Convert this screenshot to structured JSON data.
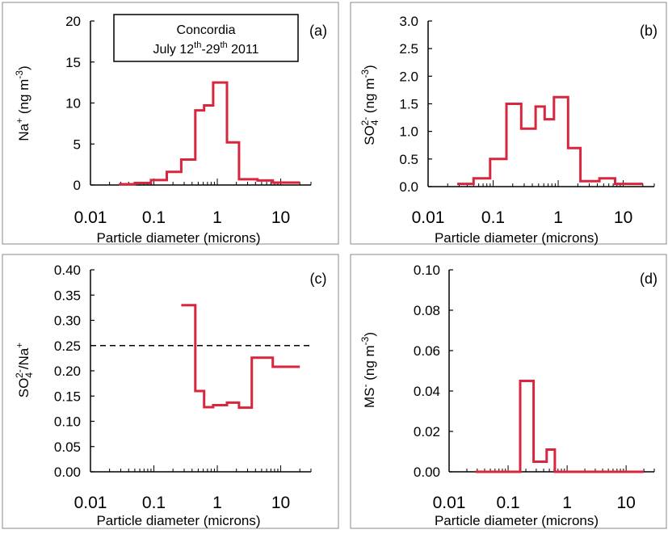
{
  "figure": {
    "legend_box": {
      "line1": "Concordia",
      "line2_prefix": "July 12",
      "sup1": "th",
      "line2_mid": "-29",
      "sup2": "th",
      "line2_suffix": " 2011"
    }
  },
  "chart_data": [
    {
      "panel": "(a)",
      "type": "line",
      "step": true,
      "x_scale": "log",
      "xlabel": "Particle diameter (microns)",
      "ylabel_parts": {
        "base": "Na",
        "sup": "+",
        "unit": " (ng m",
        "unit_sup": "-3",
        "close": ")"
      },
      "xlim": [
        0.01,
        30
      ],
      "ylim": [
        0,
        20
      ],
      "x_ticks": [
        0.01,
        0.1,
        1,
        10
      ],
      "x_tick_labels": [
        "0.01",
        "0.1",
        "1",
        "10"
      ],
      "y_ticks": [
        0,
        5,
        10,
        15,
        20
      ],
      "y_tick_labels": [
        "0",
        "5",
        "10",
        "15",
        "20"
      ],
      "edges": [
        0.028,
        0.05,
        0.09,
        0.16,
        0.27,
        0.45,
        0.62,
        0.86,
        1.42,
        2.2,
        4.3,
        7.5,
        20
      ],
      "values": [
        0.1,
        0.25,
        0.6,
        1.6,
        3.1,
        9.1,
        9.7,
        12.5,
        5.2,
        0.7,
        0.55,
        0.3
      ],
      "color": "#d7263d",
      "dashed_y": null
    },
    {
      "panel": "(b)",
      "type": "line",
      "step": true,
      "x_scale": "log",
      "xlabel": "Particle diameter (microns)",
      "ylabel_parts": {
        "base": "SO",
        "sub": "4",
        "sup": "2-",
        "unit": " (ng m",
        "unit_sup": "-3",
        "close": ")"
      },
      "xlim": [
        0.01,
        30
      ],
      "ylim": [
        0,
        3.0
      ],
      "x_ticks": [
        0.01,
        0.1,
        1,
        10
      ],
      "x_tick_labels": [
        "0.01",
        "0.1",
        "1",
        "10"
      ],
      "y_ticks": [
        0,
        0.5,
        1.0,
        1.5,
        2.0,
        2.5,
        3.0
      ],
      "y_tick_labels": [
        "0.0",
        "0.5",
        "1.0",
        "1.5",
        "2.0",
        "2.5",
        "3.0"
      ],
      "edges": [
        0.028,
        0.05,
        0.09,
        0.16,
        0.27,
        0.45,
        0.62,
        0.86,
        1.42,
        2.2,
        4.3,
        7.5,
        20
      ],
      "values": [
        0.05,
        0.15,
        0.5,
        1.5,
        1.05,
        1.45,
        1.22,
        1.62,
        0.7,
        0.1,
        0.15,
        0.05
      ],
      "color": "#d7263d",
      "dashed_y": null
    },
    {
      "panel": "(c)",
      "type": "line",
      "step": true,
      "x_scale": "log",
      "xlabel": "Particle diameter (microns)",
      "ylabel_parts": {
        "base": "SO",
        "sub": "4",
        "sup": "2-",
        "mid": "/Na",
        "sup2": "+"
      },
      "xlim": [
        0.01,
        30
      ],
      "ylim": [
        0,
        0.4
      ],
      "x_ticks": [
        0.01,
        0.1,
        1,
        10
      ],
      "x_tick_labels": [
        "0.01",
        "0.1",
        "1",
        "10"
      ],
      "y_ticks": [
        0,
        0.05,
        0.1,
        0.15,
        0.2,
        0.25,
        0.3,
        0.35,
        0.4
      ],
      "y_tick_labels": [
        "0.00",
        "0.05",
        "0.10",
        "0.15",
        "0.20",
        "0.25",
        "0.30",
        "0.35",
        "0.40"
      ],
      "edges": [
        0.27,
        0.45,
        0.62,
        0.86,
        1.42,
        2.2,
        3.5,
        7.5,
        20
      ],
      "values": [
        0.33,
        0.16,
        0.128,
        0.132,
        0.137,
        0.127,
        0.226,
        0.208
      ],
      "color": "#d7263d",
      "dashed_y": 0.25
    },
    {
      "panel": "(d)",
      "type": "line",
      "step": true,
      "x_scale": "log",
      "xlabel": "Particle diameter (microns)",
      "ylabel_parts": {
        "base": "MS",
        "sup": "-",
        "unit": " (ng m",
        "unit_sup": "-3",
        "close": ")"
      },
      "xlim": [
        0.01,
        30
      ],
      "ylim": [
        0,
        0.1
      ],
      "x_ticks": [
        0.01,
        0.1,
        1,
        10
      ],
      "x_tick_labels": [
        "0.01",
        "0.1",
        "1",
        "10"
      ],
      "y_ticks": [
        0,
        0.02,
        0.04,
        0.06,
        0.08,
        0.1
      ],
      "y_tick_labels": [
        "0.00",
        "0.02",
        "0.04",
        "0.06",
        "0.08",
        "0.10"
      ],
      "edges": [
        0.028,
        0.05,
        0.09,
        0.16,
        0.27,
        0.45,
        0.62,
        0.86,
        1.42,
        2.2,
        4.3,
        7.5,
        20
      ],
      "values": [
        0,
        0,
        0,
        0.045,
        0.005,
        0.011,
        0,
        0,
        0,
        0,
        0,
        0
      ],
      "color": "#d7263d",
      "dashed_y": null
    }
  ]
}
